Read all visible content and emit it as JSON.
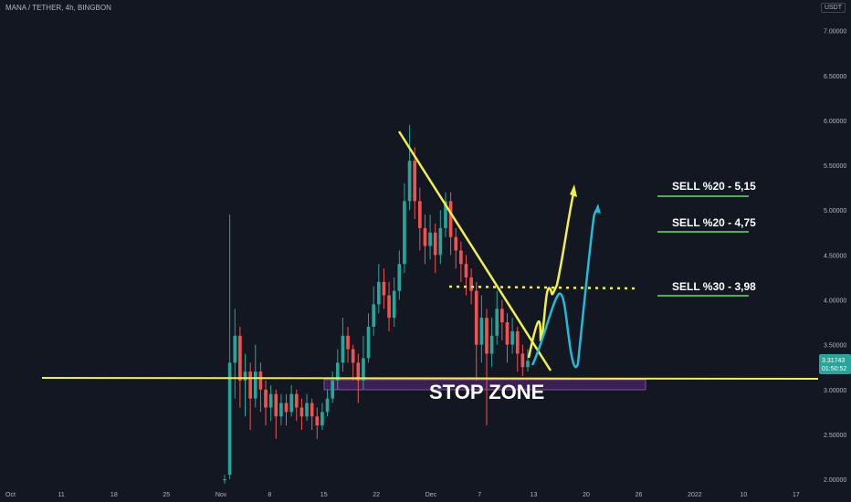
{
  "header": {
    "symbol": "MANA / TETHER, 4h, BINGBON",
    "quote_badge": "USDT"
  },
  "colors": {
    "up": "#26a69a",
    "down": "#ef5350",
    "annotation_yellow": "#f2f04b",
    "annotation_cyan": "#22bcd8",
    "sell_line": "#4caf50",
    "stop_zone": "#6a2e82"
  },
  "price_tag": {
    "price": "3.31743",
    "countdown": "01:50:52"
  },
  "chart_data": {
    "type": "candlestick",
    "title": "",
    "x_ticks": [
      "Oct",
      "11",
      "18",
      "25",
      "Nov",
      "8",
      "15",
      "22",
      "Dec",
      "7",
      "13",
      "20",
      "26",
      "2022",
      "10",
      "17"
    ],
    "y_ticks": [
      "7.00000",
      "6.50000",
      "6.00000",
      "5.50000",
      "5.00000",
      "4.50000",
      "4.00000",
      "3.50000",
      "3.00000",
      "2.50000",
      "2.00000"
    ],
    "ylim": [
      1.95,
      7.2
    ],
    "series": [
      {
        "values": [
          [
            2.0,
            2.0,
            1.95,
            2.05
          ],
          [
            2.05,
            3.3,
            2.0,
            4.95
          ],
          [
            3.3,
            3.6,
            2.9,
            3.9
          ],
          [
            3.6,
            3.1,
            2.8,
            3.7
          ],
          [
            3.1,
            3.2,
            2.7,
            3.4
          ],
          [
            3.2,
            2.9,
            2.55,
            3.3
          ],
          [
            2.9,
            3.2,
            2.8,
            3.5
          ],
          [
            3.2,
            3.0,
            2.75,
            3.3
          ],
          [
            3.0,
            2.8,
            2.6,
            3.1
          ],
          [
            2.8,
            2.95,
            2.65,
            3.05
          ],
          [
            2.95,
            2.7,
            2.45,
            3.0
          ],
          [
            2.7,
            2.85,
            2.6,
            2.95
          ],
          [
            2.85,
            2.75,
            2.6,
            2.95
          ],
          [
            2.75,
            2.95,
            2.7,
            3.05
          ],
          [
            2.95,
            2.8,
            2.65,
            3.0
          ],
          [
            2.8,
            2.7,
            2.55,
            2.9
          ],
          [
            2.7,
            2.85,
            2.65,
            2.95
          ],
          [
            2.85,
            2.7,
            2.55,
            2.9
          ],
          [
            2.7,
            2.6,
            2.45,
            2.8
          ],
          [
            2.6,
            2.75,
            2.55,
            2.85
          ],
          [
            2.75,
            2.9,
            2.7,
            3.0
          ],
          [
            2.9,
            3.1,
            2.85,
            3.2
          ],
          [
            3.1,
            3.3,
            3.0,
            3.45
          ],
          [
            3.3,
            3.6,
            3.2,
            3.8
          ],
          [
            3.6,
            3.45,
            3.3,
            3.7
          ],
          [
            3.45,
            3.3,
            3.1,
            3.5
          ],
          [
            3.3,
            3.1,
            2.85,
            3.4
          ],
          [
            3.1,
            3.35,
            3.0,
            3.6
          ],
          [
            3.35,
            3.7,
            3.3,
            3.85
          ],
          [
            3.7,
            3.95,
            3.6,
            4.15
          ],
          [
            3.95,
            4.2,
            3.85,
            4.4
          ],
          [
            4.2,
            4.05,
            3.9,
            4.35
          ],
          [
            4.05,
            3.8,
            3.65,
            4.2
          ],
          [
            3.8,
            4.1,
            3.7,
            4.25
          ],
          [
            4.1,
            4.4,
            4.0,
            4.55
          ],
          [
            4.4,
            5.1,
            4.3,
            5.3
          ],
          [
            5.1,
            5.55,
            5.0,
            5.95
          ],
          [
            5.55,
            5.1,
            4.9,
            5.7
          ],
          [
            5.1,
            4.8,
            4.55,
            5.25
          ],
          [
            4.8,
            4.6,
            4.4,
            4.95
          ],
          [
            4.6,
            4.75,
            4.45,
            4.95
          ],
          [
            4.75,
            4.5,
            4.3,
            4.85
          ],
          [
            4.5,
            4.8,
            4.4,
            5.0
          ],
          [
            4.8,
            5.1,
            4.7,
            5.2
          ],
          [
            5.1,
            4.7,
            4.5,
            5.2
          ],
          [
            4.7,
            4.55,
            4.35,
            4.8
          ],
          [
            4.55,
            4.4,
            4.2,
            4.65
          ],
          [
            4.4,
            4.25,
            4.05,
            4.5
          ],
          [
            4.25,
            4.1,
            3.95,
            4.35
          ],
          [
            4.1,
            3.5,
            3.1,
            4.2
          ],
          [
            3.5,
            3.8,
            3.3,
            4.05
          ],
          [
            3.8,
            3.4,
            2.6,
            3.9
          ],
          [
            3.4,
            3.6,
            3.25,
            3.8
          ],
          [
            3.6,
            3.9,
            3.5,
            4.1
          ],
          [
            3.9,
            3.75,
            3.55,
            4.0
          ],
          [
            3.75,
            3.5,
            3.3,
            3.85
          ],
          [
            3.5,
            3.65,
            3.4,
            3.8
          ],
          [
            3.65,
            3.4,
            3.2,
            3.7
          ],
          [
            3.4,
            3.25,
            3.15,
            3.5
          ],
          [
            3.25,
            3.32,
            3.2,
            3.45
          ]
        ]
      }
    ]
  },
  "annotations": {
    "sell_levels": [
      {
        "label": "SELL %20 - 5,15"
      },
      {
        "label": "SELL %20 - 4,75"
      },
      {
        "label": "SELL %30 - 3,98"
      }
    ],
    "stop_zone_label": "STOP ZONE"
  }
}
